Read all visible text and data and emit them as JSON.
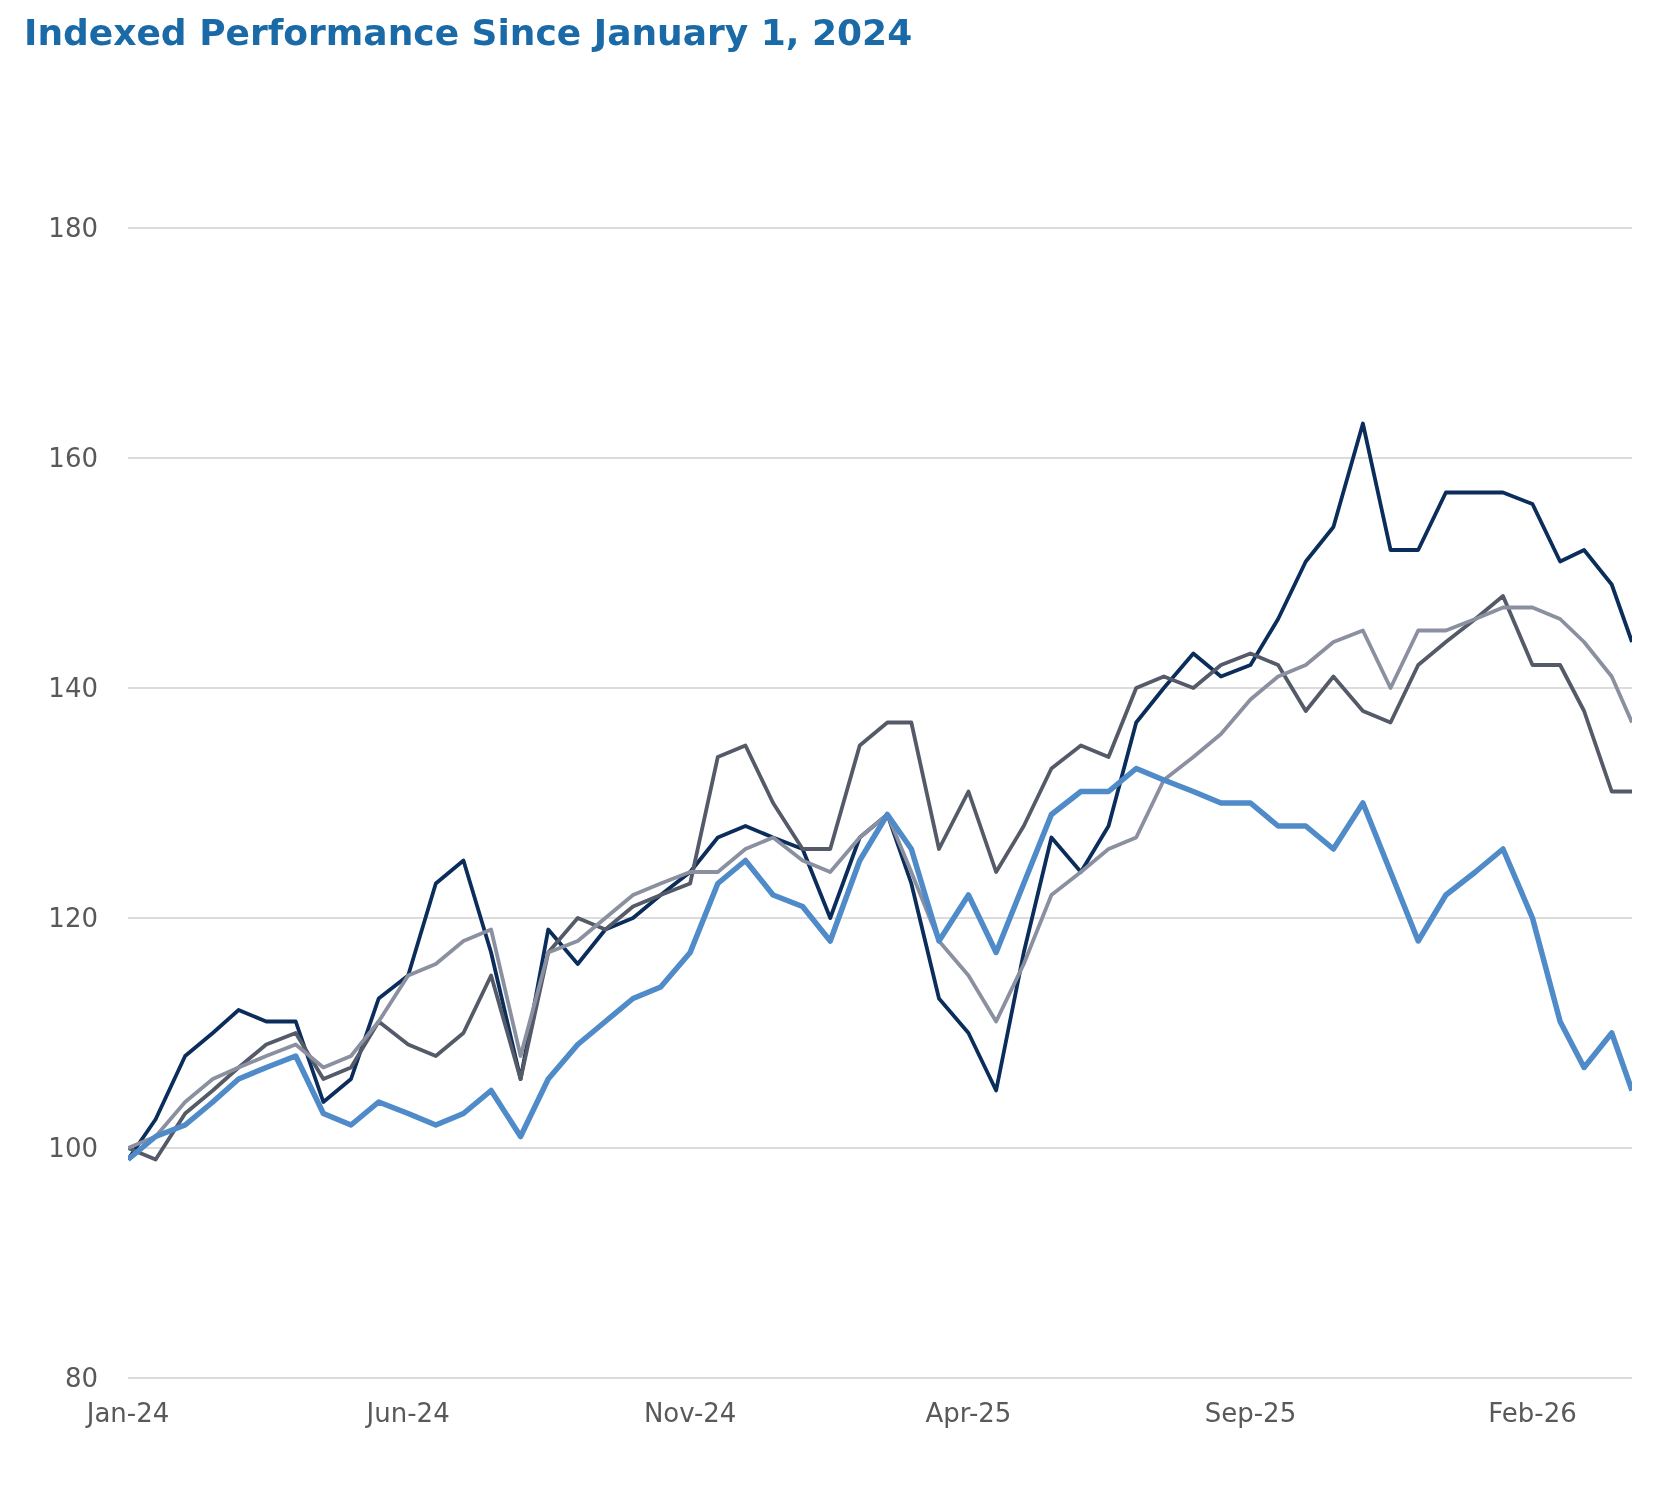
{
  "chart_data": {
    "type": "line",
    "title": "Indexed Performance Since January 1, 2024",
    "x": [
      "2024-01-01",
      "2024-01-16",
      "2024-02-01",
      "2024-02-16",
      "2024-03-01",
      "2024-03-16",
      "2024-04-01",
      "2024-04-16",
      "2024-05-01",
      "2024-05-16",
      "2024-06-01",
      "2024-06-16",
      "2024-07-01",
      "2024-07-16",
      "2024-08-01",
      "2024-08-16",
      "2024-09-01",
      "2024-09-16",
      "2024-10-01",
      "2024-10-16",
      "2024-11-01",
      "2024-11-16",
      "2024-12-01",
      "2024-12-16",
      "2025-01-01",
      "2025-01-16",
      "2025-02-01",
      "2025-02-16",
      "2025-03-01",
      "2025-03-16",
      "2025-04-01",
      "2025-04-16",
      "2025-05-01",
      "2025-05-16",
      "2025-06-01",
      "2025-06-16",
      "2025-07-01",
      "2025-07-16",
      "2025-08-01",
      "2025-08-16",
      "2025-09-01",
      "2025-09-16",
      "2025-10-01",
      "2025-10-16",
      "2025-11-01",
      "2025-11-16",
      "2025-12-01",
      "2025-12-16",
      "2026-01-01",
      "2026-01-16",
      "2026-02-01",
      "2026-02-16",
      "2026-03-01",
      "2026-03-16",
      "2026-03-27"
    ],
    "series": [
      {
        "color": "#0b2d5b",
        "values": [
          99,
          102.5,
          108,
          110,
          112,
          111,
          111,
          104,
          106,
          113,
          115,
          123,
          125,
          117,
          106,
          119,
          116,
          119,
          120,
          122,
          124,
          127,
          128,
          127,
          126,
          120,
          127,
          129,
          123,
          113,
          110,
          105,
          117,
          127,
          124,
          128,
          137,
          140,
          143,
          141,
          142,
          146,
          151,
          154,
          163,
          152,
          152,
          157,
          157,
          157,
          156,
          151,
          152,
          149,
          144
        ]
      },
      {
        "color": "#545a68",
        "values": [
          100,
          99,
          103,
          105,
          107,
          109,
          110,
          106,
          107,
          111,
          109,
          108,
          110,
          115,
          106,
          117,
          120,
          119,
          121,
          122,
          123,
          134,
          135,
          130,
          126,
          126,
          135,
          137,
          137,
          126,
          131,
          124,
          128,
          133,
          135,
          134,
          140,
          141,
          140,
          142,
          143,
          142,
          138,
          141,
          138,
          137,
          142,
          144,
          146,
          148,
          142,
          142,
          138,
          131,
          131
        ]
      },
      {
        "color": "#8a90a0",
        "values": [
          100,
          101,
          104,
          106,
          107,
          108,
          109,
          107,
          108,
          111,
          115,
          116,
          118,
          119,
          108,
          117,
          118,
          120,
          122,
          123,
          124,
          124,
          126,
          127,
          125,
          124,
          127,
          129,
          124,
          118,
          115,
          111,
          116,
          122,
          124,
          126,
          127,
          132,
          134,
          136,
          139,
          141,
          142,
          144,
          145,
          140,
          145,
          145,
          146,
          147,
          147,
          146,
          144,
          141,
          137
        ]
      },
      {
        "color": "#4f8ac9",
        "values": [
          99,
          101,
          102,
          104,
          106,
          107,
          108,
          103,
          102,
          104,
          103,
          102,
          103,
          105,
          101,
          106,
          109,
          111,
          113,
          114,
          117,
          123,
          125,
          122,
          121,
          118,
          125,
          129,
          126,
          118,
          122,
          117,
          123,
          129,
          131,
          131,
          133,
          132,
          131,
          130,
          130,
          128,
          128,
          126,
          130,
          124,
          118,
          122,
          124,
          126,
          120,
          111,
          107,
          110,
          105
        ]
      }
    ],
    "xlim": [
      "2024-01-01",
      "2026-03-27"
    ],
    "xticks": [
      {
        "value": "2024-01-01",
        "label": "Jan-24"
      },
      {
        "value": "2024-06-01",
        "label": "Jun-24"
      },
      {
        "value": "2024-11-01",
        "label": "Nov-24"
      },
      {
        "value": "2025-04-01",
        "label": "Apr-25"
      },
      {
        "value": "2025-09-01",
        "label": "Sep-25"
      },
      {
        "value": "2026-02-01",
        "label": "Feb-26"
      }
    ],
    "ylim": [
      80,
      180
    ],
    "yticks": [
      80,
      100,
      120,
      140,
      160,
      180
    ],
    "grid": "y",
    "marker": "none",
    "line_style": "solid"
  }
}
